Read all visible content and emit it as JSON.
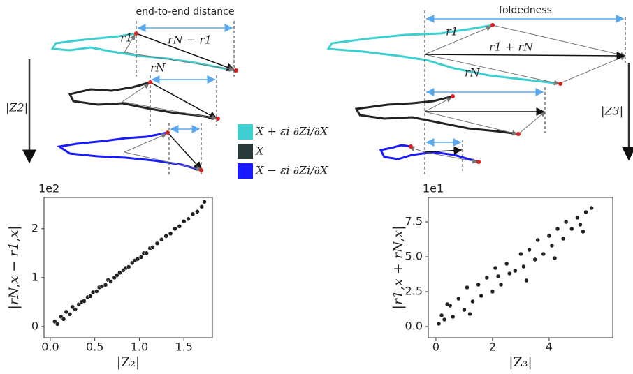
{
  "diagram": {
    "left_title": "end-to-end distance",
    "right_title": "foldedness",
    "left_r1": "r1",
    "left_diff": "rN − r1",
    "left_rN": "rN",
    "right_r1": "r1",
    "right_sum": "r1 + rN",
    "right_rN": "rN",
    "left_arrow_label": "|Z2|",
    "right_arrow_label": "|Z3|",
    "legend": [
      "X + εi ∂Zi/∂X",
      "X",
      "X − εi ∂Zi/∂X"
    ]
  },
  "chart_data": [
    {
      "type": "scatter",
      "xlabel": "|Z₂|",
      "ylabel": "|rN,x − r1,x|",
      "y_offset_label": "1e2",
      "color": "#222222",
      "x": [
        0.05,
        0.08,
        0.12,
        0.15,
        0.18,
        0.22,
        0.25,
        0.28,
        0.32,
        0.35,
        0.38,
        0.42,
        0.45,
        0.48,
        0.52,
        0.55,
        0.58,
        0.62,
        0.65,
        0.68,
        0.72,
        0.75,
        0.78,
        0.82,
        0.85,
        0.88,
        0.92,
        0.95,
        0.98,
        1.02,
        1.05,
        1.08,
        1.12,
        1.15,
        1.2,
        1.25,
        1.3,
        1.35,
        1.4,
        1.45,
        1.5,
        1.55,
        1.6,
        1.65,
        1.7,
        1.73
      ],
      "values": [
        0.1,
        0.05,
        0.2,
        0.15,
        0.3,
        0.25,
        0.4,
        0.35,
        0.45,
        0.5,
        0.52,
        0.6,
        0.62,
        0.7,
        0.72,
        0.8,
        0.82,
        0.85,
        0.95,
        0.92,
        1.0,
        1.05,
        1.1,
        1.15,
        1.2,
        1.22,
        1.3,
        1.35,
        1.38,
        1.42,
        1.5,
        1.5,
        1.6,
        1.62,
        1.7,
        1.78,
        1.85,
        1.9,
        2.0,
        2.05,
        2.15,
        2.2,
        2.3,
        2.35,
        2.45,
        2.55
      ],
      "xlim": [
        -0.07,
        1.82
      ],
      "ylim": [
        -0.23,
        2.64
      ],
      "xticks": [
        {
          "value": 0,
          "label": "0.0"
        },
        0.5,
        {
          "value": 1,
          "label": "1.0"
        },
        1.5
      ],
      "yticks": [
        0,
        1,
        2
      ]
    },
    {
      "type": "scatter",
      "xlabel": "|Z₃|",
      "ylabel": "|r1,x + rN,x|",
      "y_offset_label": "1e1",
      "color": "#222222",
      "x": [
        0.1,
        0.2,
        0.3,
        0.5,
        0.6,
        0.8,
        1.0,
        1.1,
        1.3,
        1.5,
        1.6,
        1.8,
        2.0,
        2.1,
        2.3,
        2.5,
        2.6,
        2.8,
        3.0,
        3.1,
        3.3,
        3.5,
        3.6,
        3.8,
        4.0,
        4.1,
        4.3,
        4.5,
        4.6,
        4.8,
        5.0,
        5.1,
        5.3,
        5.5,
        0.4,
        1.2,
        2.2,
        3.2,
        4.2,
        5.2
      ],
      "values": [
        0.2,
        0.8,
        0.5,
        1.5,
        0.7,
        2.0,
        1.2,
        2.8,
        1.8,
        3.0,
        2.2,
        3.5,
        2.5,
        4.2,
        3.0,
        4.5,
        3.8,
        4.0,
        5.2,
        4.3,
        5.5,
        4.8,
        6.2,
        5.2,
        6.5,
        5.8,
        7.0,
        6.3,
        7.5,
        7.0,
        7.8,
        7.3,
        8.2,
        8.5,
        1.6,
        0.9,
        3.6,
        3.3,
        4.9,
        6.8
      ],
      "xlim": [
        -0.27,
        6.25
      ],
      "ylim": [
        -0.8,
        9.25
      ],
      "xticks": [
        0,
        2,
        4
      ],
      "yticks": [
        {
          "value": 0,
          "label": "0.0"
        },
        2.5,
        {
          "value": 5,
          "label": "5.0"
        },
        7.5
      ]
    }
  ]
}
